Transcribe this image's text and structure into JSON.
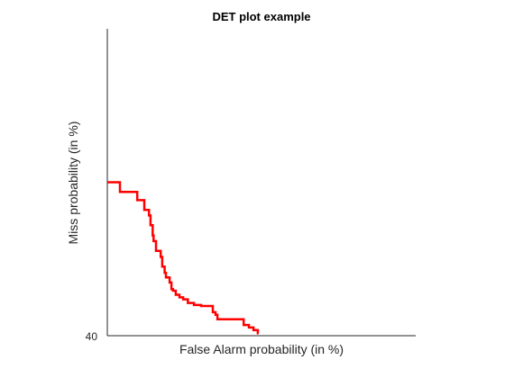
{
  "chart_data": {
    "type": "line",
    "title": "DET plot example",
    "xlabel": "False Alarm probability (in %)",
    "ylabel": "Miss probability (in %)",
    "xlim": [
      0,
      100
    ],
    "ylim": [
      40,
      100
    ],
    "y_ticks": [
      "40"
    ],
    "grid": false,
    "legend": "none",
    "series": [
      {
        "color": "#ff0000",
        "x": [
          0.0,
          4.1,
          4.1,
          9.7,
          9.7,
          12.0,
          12.0,
          13.5,
          13.5,
          14.0,
          14.0,
          14.7,
          14.7,
          15.0,
          15.0,
          15.8,
          15.8,
          17.3,
          17.3,
          17.8,
          17.8,
          18.6,
          18.6,
          19.0,
          19.0,
          20.2,
          20.2,
          20.8,
          20.8,
          21.3,
          21.3,
          22.2,
          22.2,
          23.4,
          23.4,
          24.6,
          24.6,
          26.1,
          26.1,
          28.1,
          28.1,
          30.4,
          30.4,
          34.2,
          34.2,
          35.1,
          35.1,
          35.7,
          35.7,
          37.1,
          37.1,
          44.2,
          44.2,
          45.9,
          45.9,
          47.4,
          47.4,
          48.8,
          48.8,
          49.1
        ],
        "y": [
          70.0,
          70.0,
          68.1,
          68.1,
          66.5,
          66.5,
          64.6,
          64.6,
          63.5,
          63.5,
          61.6,
          61.6,
          59.6,
          59.6,
          58.5,
          58.5,
          56.6,
          56.6,
          55.4,
          55.4,
          53.5,
          53.5,
          52.3,
          52.3,
          51.4,
          51.4,
          50.4,
          50.4,
          49.1,
          49.1,
          48.8,
          48.8,
          48.0,
          48.0,
          47.5,
          47.5,
          47.1,
          47.1,
          46.4,
          46.4,
          46.0,
          46.0,
          45.8,
          45.8,
          44.6,
          44.6,
          44.1,
          44.1,
          43.2,
          43.2,
          43.2,
          43.2,
          42.1,
          42.1,
          41.6,
          41.6,
          41.1,
          41.1,
          40.5,
          40.5
        ]
      }
    ]
  }
}
